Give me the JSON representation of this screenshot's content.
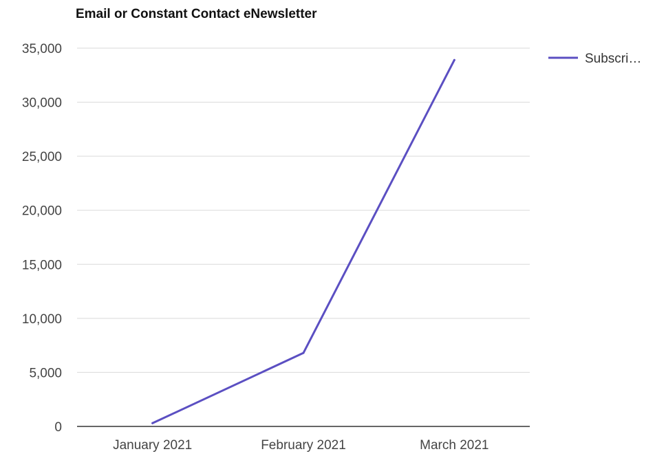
{
  "chart_data": {
    "type": "line",
    "title": "Email or Constant Contact eNewsletter",
    "categories": [
      "January 2021",
      "February 2021",
      "March 2021"
    ],
    "series": [
      {
        "name": "Subscri…",
        "values": [
          300,
          6800,
          33900
        ]
      }
    ],
    "xlabel": "",
    "ylabel": "",
    "ylim": [
      0,
      35000
    ],
    "yticks": [
      0,
      5000,
      10000,
      15000,
      20000,
      25000,
      30000,
      35000
    ],
    "ytick_labels": [
      "0",
      "5,000",
      "10,000",
      "15,000",
      "20,000",
      "25,000",
      "30,000",
      "35,000"
    ],
    "grid": true,
    "legend_position": "right",
    "colors": {
      "series": "#5b4fc2",
      "grid": "#d9d9d9",
      "axis": "#333333"
    }
  }
}
